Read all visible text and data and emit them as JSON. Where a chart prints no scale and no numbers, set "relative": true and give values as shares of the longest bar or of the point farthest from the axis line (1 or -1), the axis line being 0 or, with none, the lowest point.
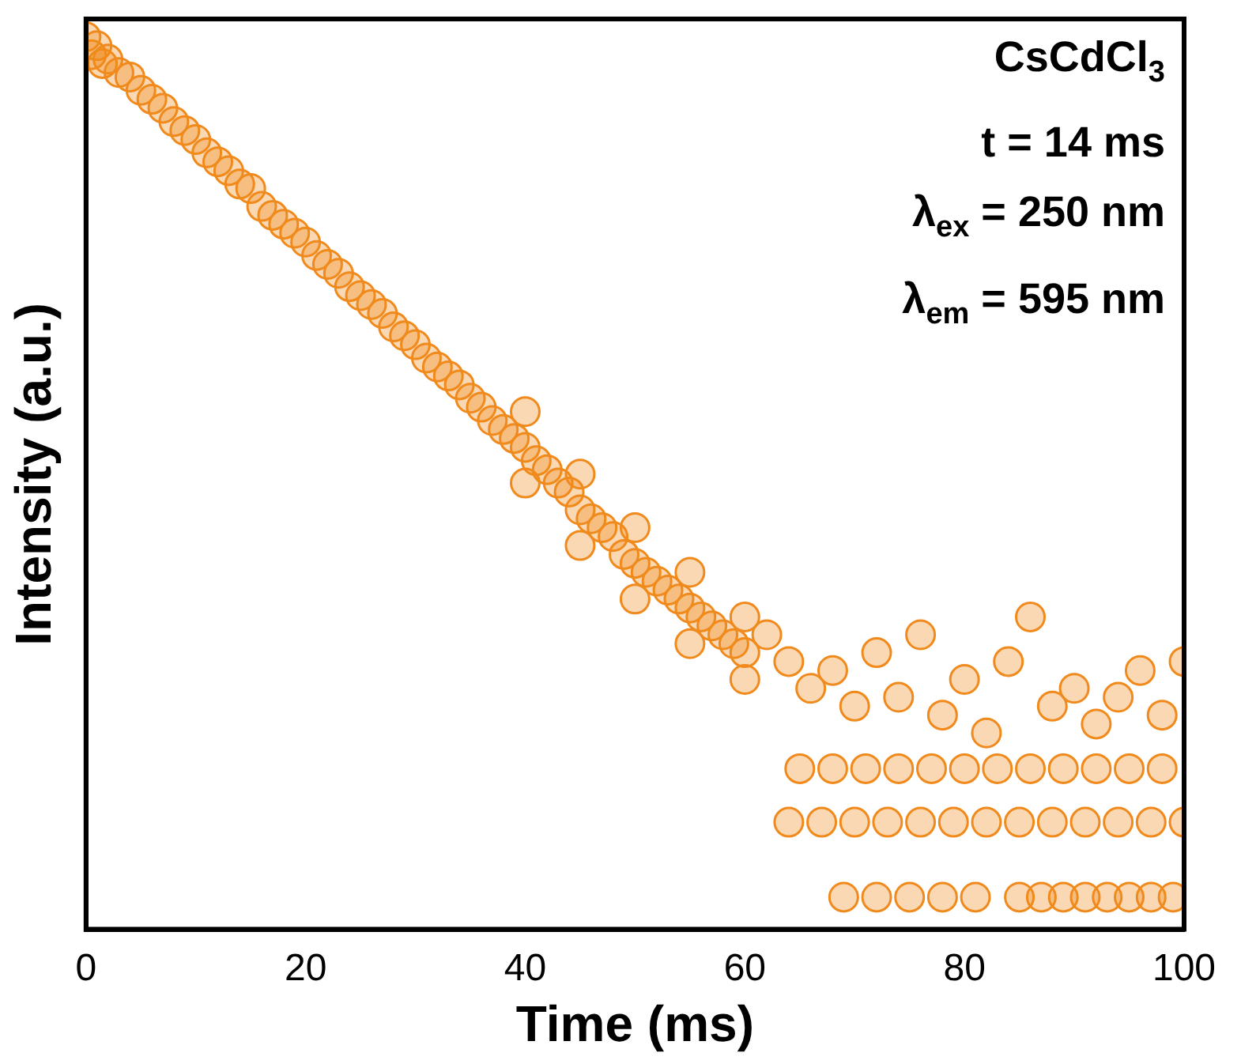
{
  "chart_data": {
    "type": "scatter",
    "xlabel": "Time (ms)",
    "ylabel": "Intensity (a.u.)",
    "relative": true,
    "xlim": [
      0,
      100
    ],
    "xticks": [
      0,
      20,
      40,
      60,
      80,
      100
    ],
    "marker": "circle",
    "legend": false,
    "color": "#f08a1c",
    "annotations": [
      "CsCdCl$_{3}$",
      "t = 14 ms",
      "λ$_{ex}$ = 250 nm",
      "λ$_{em}$ = 595 nm"
    ],
    "x": [
      0,
      0.5,
      1,
      1.5,
      2,
      3,
      4,
      5,
      6,
      7,
      8,
      9,
      10,
      11,
      12,
      13,
      14,
      15,
      16,
      17,
      18,
      19,
      20,
      21,
      22,
      23,
      24,
      25,
      26,
      27,
      28,
      29,
      30,
      31,
      32,
      33,
      34,
      35,
      36,
      37,
      38,
      39,
      40,
      41,
      42,
      43,
      44,
      45,
      46,
      47,
      48,
      49,
      50,
      51,
      52,
      53,
      54,
      55,
      56,
      57,
      58,
      59,
      60,
      40,
      40,
      45,
      45,
      50,
      50,
      55,
      55,
      60,
      60,
      69,
      72,
      75,
      78,
      81,
      85,
      87,
      89,
      91,
      93,
      95,
      97,
      99,
      64,
      67,
      70,
      73,
      76,
      79,
      82,
      85,
      88,
      91,
      94,
      97,
      100,
      65,
      68,
      71,
      74,
      77,
      80,
      83,
      86,
      89,
      92,
      95,
      98,
      62,
      64,
      66,
      68,
      70,
      72,
      74,
      76,
      78,
      80,
      82,
      84,
      86,
      88,
      90,
      92,
      94,
      96,
      98,
      100
    ],
    "values": [
      1.0,
      0.98,
      0.99,
      0.97,
      0.975,
      0.96,
      0.955,
      0.94,
      0.93,
      0.92,
      0.905,
      0.895,
      0.885,
      0.87,
      0.86,
      0.85,
      0.835,
      0.83,
      0.81,
      0.8,
      0.79,
      0.78,
      0.77,
      0.755,
      0.745,
      0.735,
      0.72,
      0.71,
      0.7,
      0.69,
      0.675,
      0.665,
      0.655,
      0.64,
      0.63,
      0.62,
      0.61,
      0.595,
      0.585,
      0.57,
      0.56,
      0.55,
      0.54,
      0.525,
      0.515,
      0.5,
      0.49,
      0.47,
      0.46,
      0.45,
      0.44,
      0.42,
      0.41,
      0.4,
      0.39,
      0.38,
      0.37,
      0.36,
      0.35,
      0.34,
      0.33,
      0.32,
      0.31,
      0.58,
      0.5,
      0.51,
      0.43,
      0.45,
      0.37,
      0.4,
      0.32,
      0.35,
      0.28,
      0.036,
      0.036,
      0.036,
      0.036,
      0.036,
      0.036,
      0.036,
      0.036,
      0.036,
      0.036,
      0.036,
      0.036,
      0.036,
      0.12,
      0.12,
      0.12,
      0.12,
      0.12,
      0.12,
      0.12,
      0.12,
      0.12,
      0.12,
      0.12,
      0.12,
      0.12,
      0.18,
      0.18,
      0.18,
      0.18,
      0.18,
      0.18,
      0.18,
      0.18,
      0.18,
      0.18,
      0.18,
      0.18,
      0.33,
      0.3,
      0.27,
      0.29,
      0.25,
      0.31,
      0.26,
      0.33,
      0.24,
      0.28,
      0.22,
      0.3,
      0.35,
      0.25,
      0.27,
      0.23,
      0.26,
      0.29,
      0.24,
      0.3
    ]
  }
}
